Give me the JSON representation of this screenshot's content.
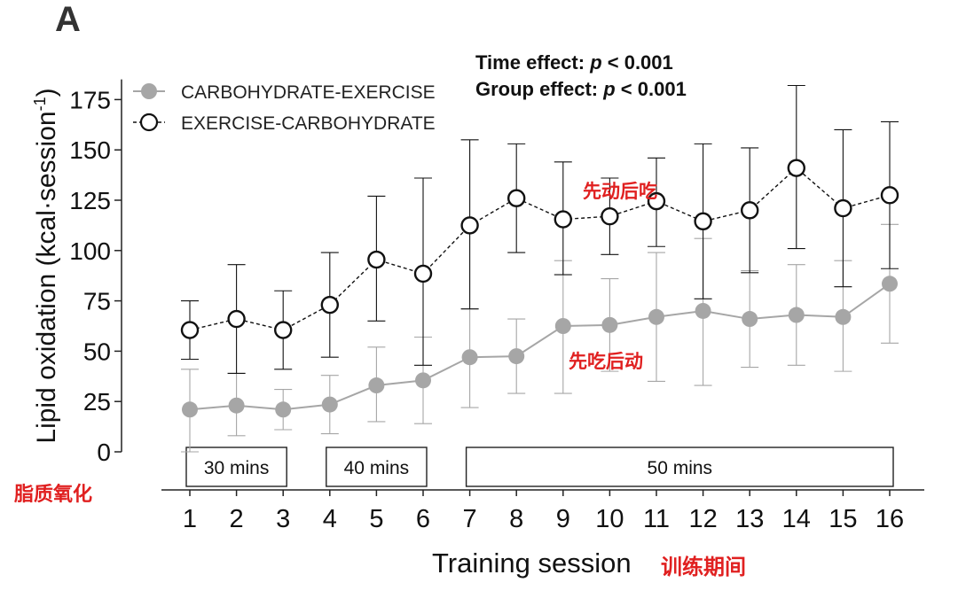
{
  "panel_label": "A",
  "stats": {
    "time_effect_prefix": "Time effect: ",
    "time_effect_p": "p",
    "time_effect_suffix": " < 0.001",
    "group_effect_prefix": "Group effect: ",
    "group_effect_p": "p",
    "group_effect_suffix": " < 0.001"
  },
  "annotations": {
    "exercise_first_cn": "先动后吃",
    "carb_first_cn": "先吃后动",
    "ylabel_cn": "脂质氧化",
    "xlabel_cn": "训练期间"
  },
  "colors": {
    "grey_series": "#a6a6a6",
    "black_series": "#111111",
    "annotation_red": "#e02020"
  },
  "chart_data": {
    "type": "line",
    "xlabel": "Training session",
    "ylabel": "Lipid oxidation (kcal·session",
    "ylabel_sup": "-1",
    "ylabel_close": ")",
    "x": [
      1,
      2,
      3,
      4,
      5,
      6,
      7,
      8,
      9,
      10,
      11,
      12,
      13,
      14,
      15,
      16
    ],
    "ylim": [
      0,
      185
    ],
    "yticks": [
      0,
      25,
      50,
      75,
      100,
      125,
      150,
      175
    ],
    "grid": false,
    "legend": "top-left",
    "series": [
      {
        "name": "CARBOHYDRATE-EXERCISE",
        "marker": "filled-circle",
        "line": "solid",
        "color": "#a6a6a6",
        "values": [
          21,
          23,
          21,
          23.5,
          33,
          35.5,
          47,
          47.5,
          62.5,
          63,
          67,
          70,
          66,
          68,
          67,
          83.5
        ],
        "err_low": [
          0,
          8,
          11,
          9,
          15,
          14,
          22,
          29,
          29,
          40,
          35,
          33,
          42,
          43,
          40,
          54
        ],
        "err_high": [
          41,
          39,
          31,
          38,
          52,
          57,
          71,
          66,
          95,
          86,
          99,
          106,
          90,
          93,
          95,
          113
        ]
      },
      {
        "name": "EXERCISE-CARBOHYDRATE",
        "marker": "open-circle",
        "line": "dashed",
        "color": "#111111",
        "values": [
          60.5,
          66,
          60.5,
          73,
          95.5,
          88.5,
          112.5,
          126,
          115.5,
          117,
          124.5,
          114.5,
          120,
          141,
          121,
          127.5
        ],
        "err_low": [
          46,
          39,
          41,
          47,
          65,
          43,
          71,
          99,
          88,
          98,
          102,
          76,
          89,
          101,
          82,
          91
        ],
        "err_high": [
          75,
          93,
          80,
          99,
          127,
          136,
          155,
          153,
          144,
          136,
          146,
          153,
          151,
          182,
          160,
          164
        ]
      }
    ],
    "session_blocks": [
      {
        "label": "30 mins",
        "from": 1,
        "to": 3
      },
      {
        "label": "40 mins",
        "from": 4,
        "to": 6
      },
      {
        "label": "50 mins",
        "from": 7,
        "to": 16
      }
    ]
  }
}
